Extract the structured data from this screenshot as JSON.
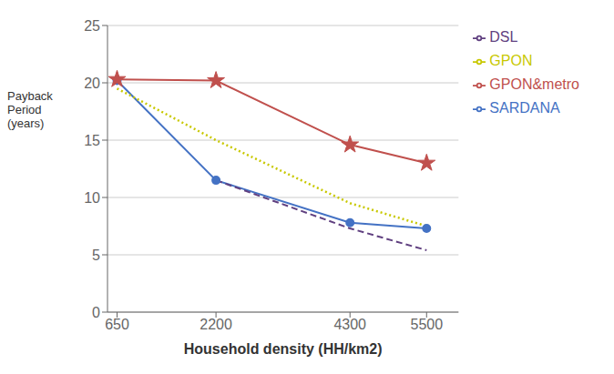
{
  "chart_data": {
    "type": "line",
    "x_label": "Household density (HH/km2)",
    "y_label": "Payback\nPeriod\n(years)",
    "x": [
      650,
      2200,
      4300,
      5500
    ],
    "series": [
      {
        "name": "SARDANA",
        "color": "#4472C4",
        "marker": "circle",
        "line_style": "solid",
        "values": [
          20.2,
          11.5,
          7.8,
          7.3
        ]
      },
      {
        "name": "GPON&metro",
        "color": "#C0504D",
        "marker": "star",
        "line_style": "solid",
        "values": [
          20.3,
          20.2,
          14.6,
          13.0
        ]
      },
      {
        "name": "GPON",
        "color": "#C8C800",
        "marker": "none",
        "line_style": "dotted",
        "values": [
          19.5,
          15.0,
          9.5,
          7.5
        ]
      },
      {
        "name": "DSL",
        "color": "#604080",
        "marker": "none",
        "line_style": "dashed",
        "values": [
          null,
          11.5,
          7.3,
          5.4
        ]
      }
    ],
    "xlim": [
      500,
      6000
    ],
    "xticks": [
      650,
      2200,
      4300,
      5500
    ],
    "ylim": [
      0,
      25
    ],
    "yticks": [
      0,
      5,
      10,
      15,
      20,
      25
    ],
    "grid": "y",
    "legend": "right"
  }
}
